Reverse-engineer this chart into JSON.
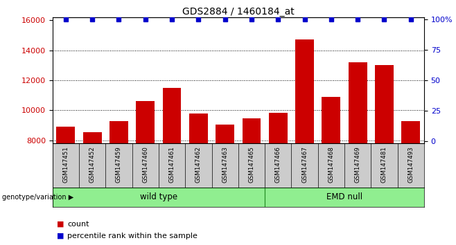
{
  "title": "GDS2884 / 1460184_at",
  "samples": [
    "GSM147451",
    "GSM147452",
    "GSM147459",
    "GSM147460",
    "GSM147461",
    "GSM147462",
    "GSM147463",
    "GSM147465",
    "GSM147466",
    "GSM147467",
    "GSM147468",
    "GSM147469",
    "GSM147481",
    "GSM147493"
  ],
  "counts": [
    8900,
    8550,
    9300,
    10600,
    11500,
    9800,
    9050,
    9450,
    9850,
    14700,
    10900,
    13200,
    13000,
    9300
  ],
  "percentile_ranks": [
    100,
    100,
    100,
    100,
    100,
    100,
    100,
    100,
    100,
    100,
    100,
    100,
    100,
    100
  ],
  "wt_count": 8,
  "emd_count": 6,
  "bar_color": "#cc0000",
  "percentile_color": "#0000cc",
  "ylim_left": [
    7800,
    16200
  ],
  "ylim_right": [
    -2,
    102
  ],
  "yticks_left": [
    8000,
    10000,
    12000,
    14000,
    16000
  ],
  "yticks_right": [
    0,
    25,
    50,
    75,
    100
  ],
  "grid_color": "#000000",
  "bg_color": "#ffffff",
  "label_area_color": "#cccccc",
  "group_color": "#90EE90",
  "legend_count_label": "count",
  "legend_percentile_label": "percentile rank within the sample",
  "genotype_label": "genotype/variation"
}
